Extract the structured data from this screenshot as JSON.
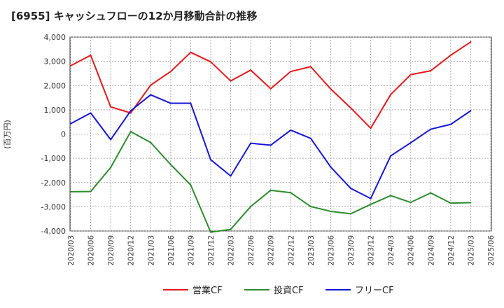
{
  "chart_data": {
    "type": "line",
    "title": "[6955]  キャッシュフローの12か月移動合計の推移",
    "ylabel": "(百万円)",
    "xlabel": "",
    "ylim": [
      -4000,
      4000
    ],
    "yticks": [
      4000,
      3000,
      2000,
      1000,
      0,
      -1000,
      -2000,
      -3000,
      -4000
    ],
    "ytick_labels": [
      "4,000",
      "3,000",
      "2,000",
      "1,000",
      "0",
      "-1,000",
      "-2,000",
      "-3,000",
      "-4,000"
    ],
    "x": [
      "2020/03",
      "2020/06",
      "2020/09",
      "2020/12",
      "2021/03",
      "2021/06",
      "2021/09",
      "2021/12",
      "2022/03",
      "2022/06",
      "2022/09",
      "2022/12",
      "2023/03",
      "2023/06",
      "2023/09",
      "2023/12",
      "2024/03",
      "2024/06",
      "2024/09",
      "2024/12",
      "2025/03",
      "2025/06"
    ],
    "grid": true,
    "legend_position": "bottom",
    "series": [
      {
        "name": "営業CF",
        "color": "#e31a1c",
        "values": [
          2820,
          3250,
          1120,
          870,
          2020,
          2580,
          3370,
          2980,
          2190,
          2640,
          1870,
          2580,
          2780,
          1860,
          1080,
          240,
          1630,
          2450,
          2610,
          3250,
          3800,
          null
        ]
      },
      {
        "name": "投資CF",
        "color": "#2e8b2e",
        "values": [
          -2380,
          -2370,
          -1380,
          100,
          -350,
          -1260,
          -2100,
          -4050,
          -3930,
          -2990,
          -2320,
          -2420,
          -2990,
          -3190,
          -3290,
          -2900,
          -2540,
          -2820,
          -2430,
          -2850,
          -2830,
          null
        ]
      },
      {
        "name": "フリーCF",
        "color": "#1616d6",
        "values": [
          430,
          870,
          -230,
          960,
          1620,
          1270,
          1270,
          -1060,
          -1730,
          -380,
          -460,
          160,
          -180,
          -1360,
          -2240,
          -2660,
          -900,
          -360,
          200,
          400,
          960,
          null
        ]
      }
    ]
  }
}
